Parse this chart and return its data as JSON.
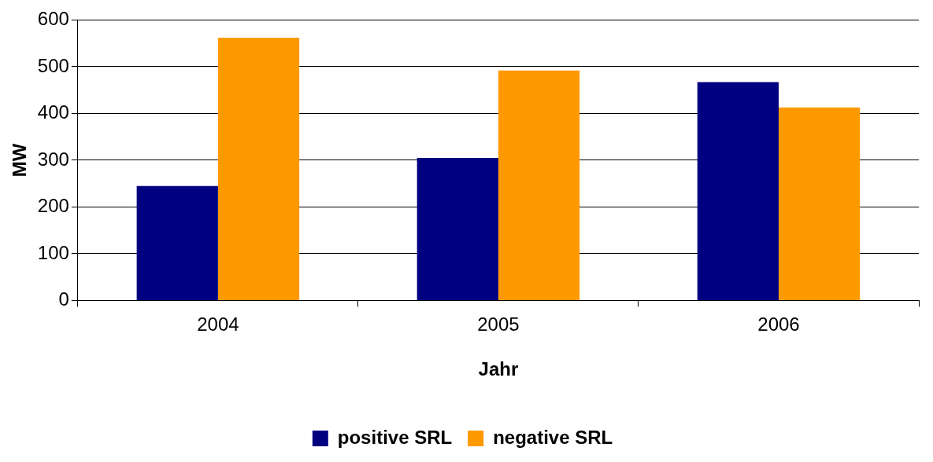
{
  "chart_data": {
    "type": "bar",
    "xlabel": "Jahr",
    "ylabel": "MW",
    "categories": [
      "2004",
      "2005",
      "2006"
    ],
    "series": [
      {
        "name": "positive SRL",
        "color": "#000080",
        "values": [
          245,
          305,
          467
        ]
      },
      {
        "name": "negative SRL",
        "color": "#ff9900",
        "values": [
          562,
          492,
          413
        ]
      }
    ],
    "ylim": [
      0,
      600
    ],
    "yticks": [
      0,
      100,
      200,
      300,
      400,
      500,
      600
    ],
    "grid": "y",
    "legend": "bottom"
  }
}
